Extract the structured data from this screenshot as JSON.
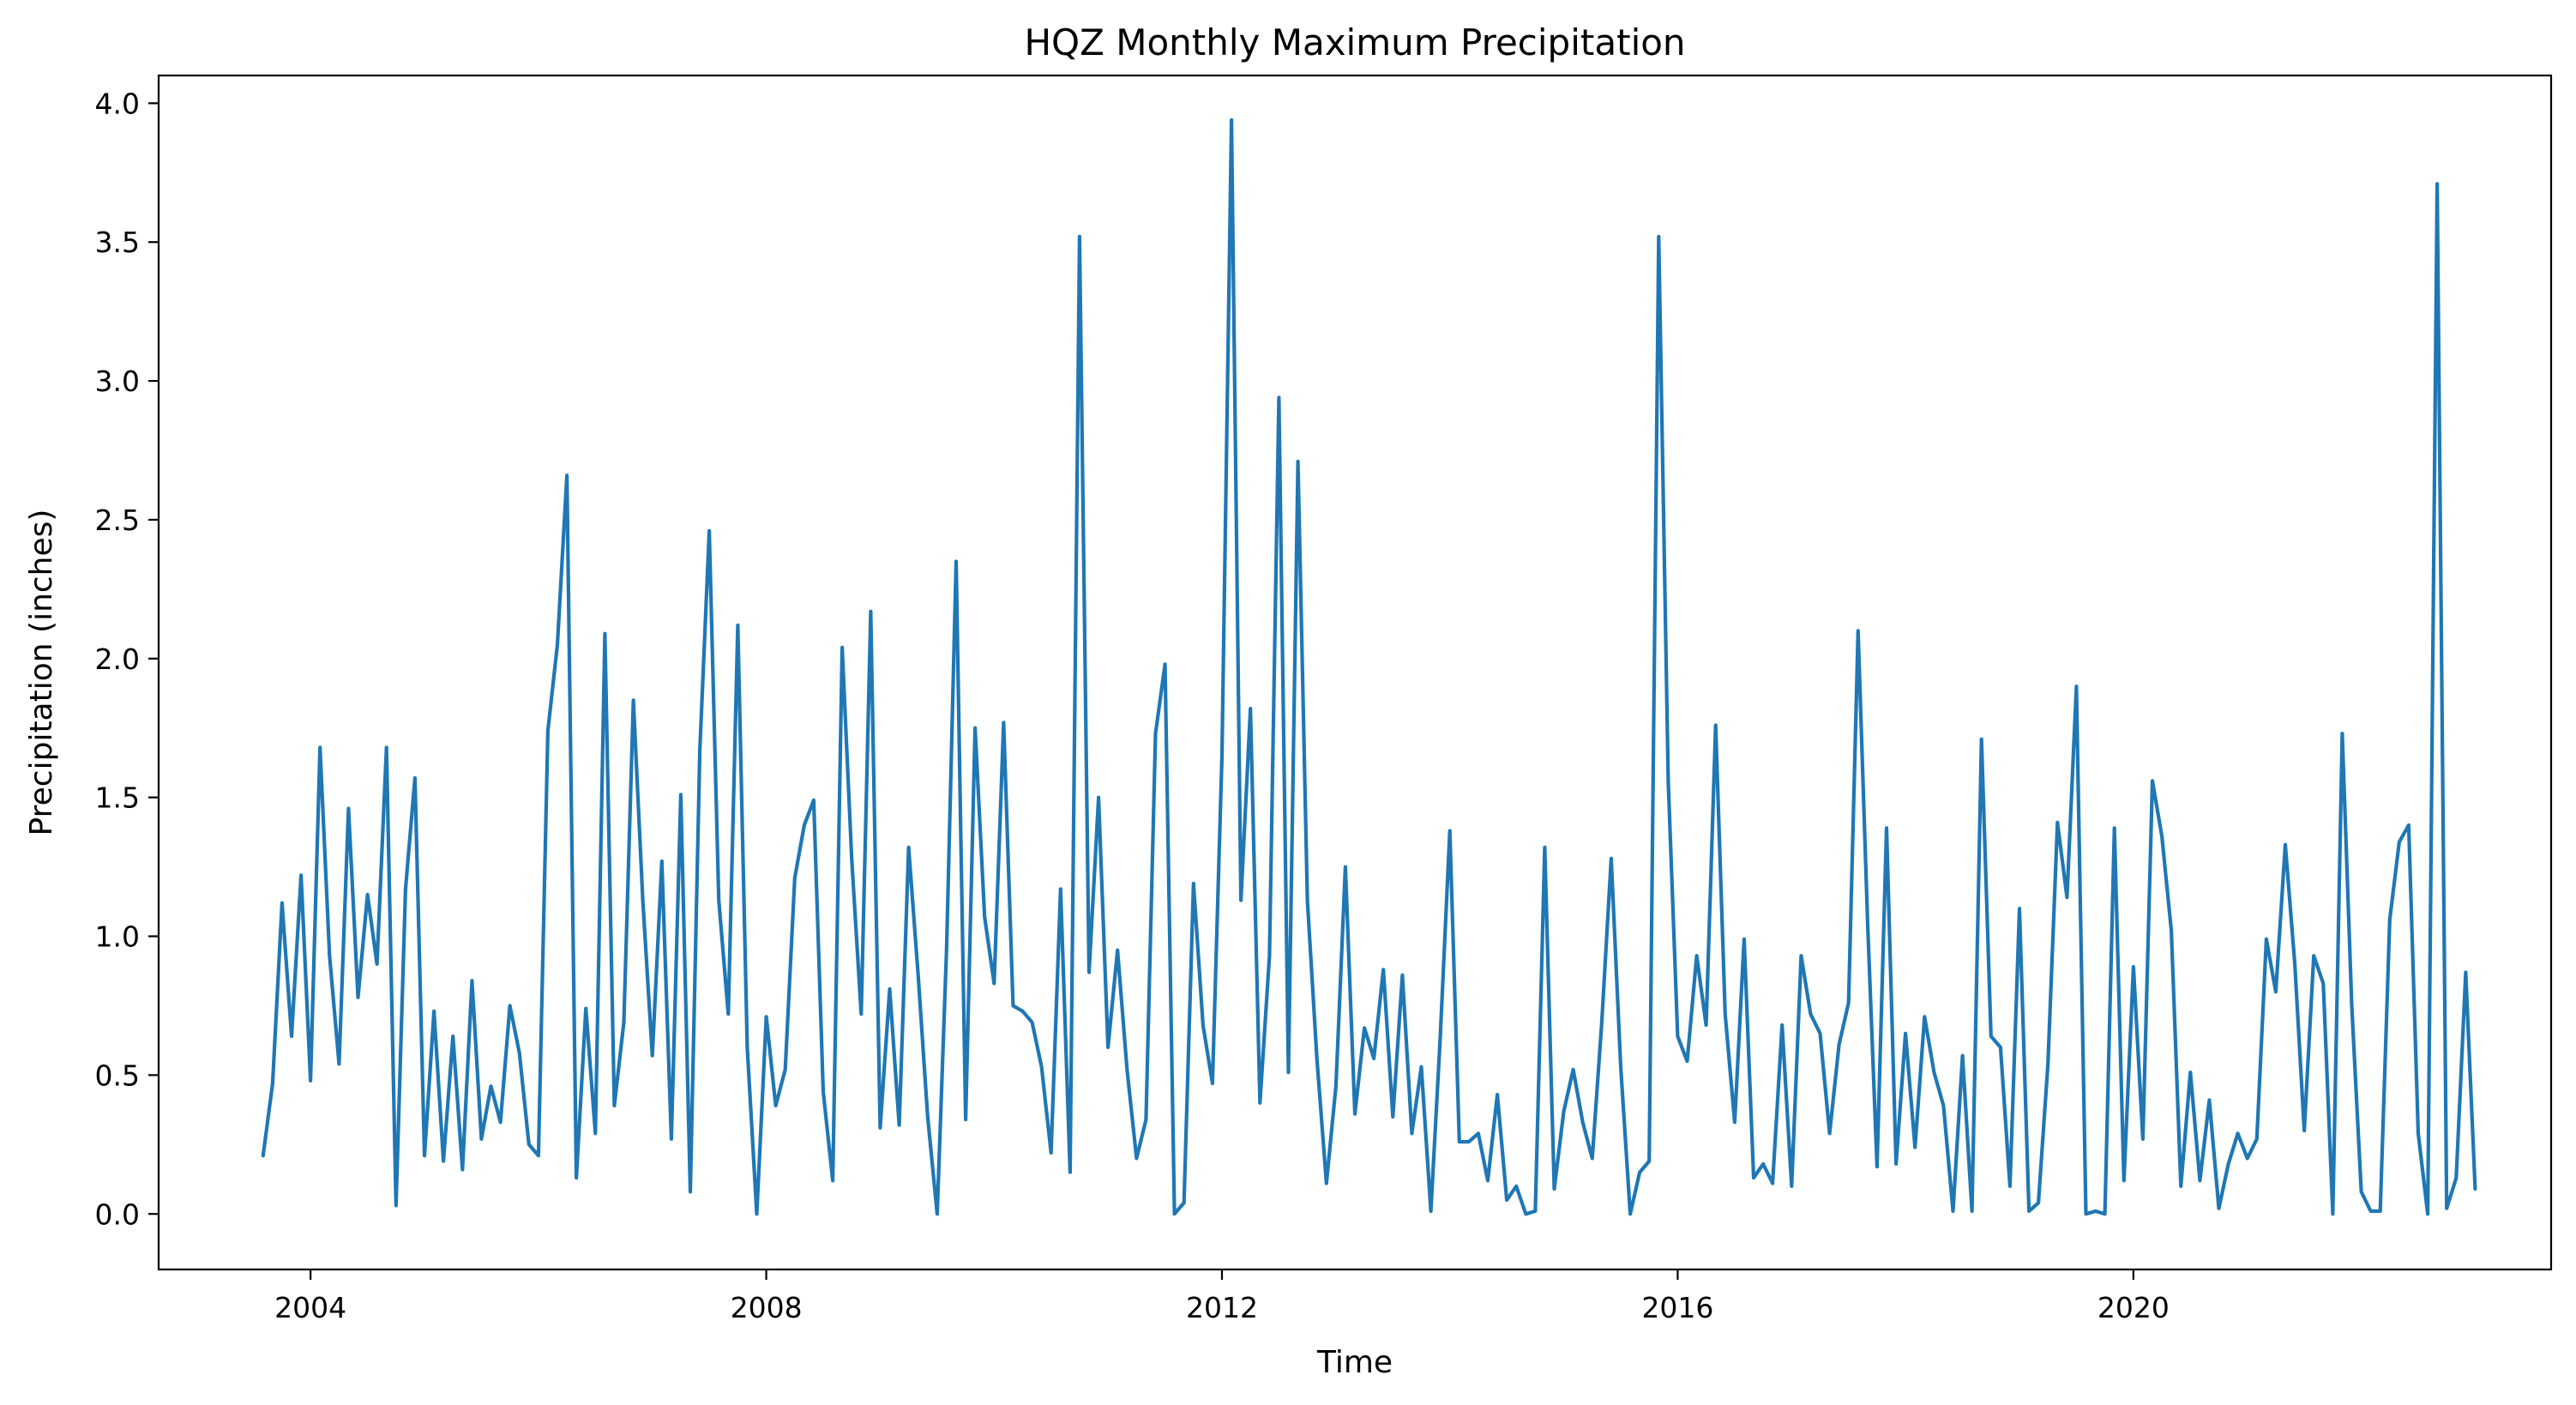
{
  "chart_data": {
    "type": "line",
    "title": "HQZ Monthly Maximum Precipitation",
    "xlabel": "Time",
    "ylabel": "Precipitation (inches)",
    "xlim": [
      "2002-09",
      "2023-09"
    ],
    "ylim": [
      -0.2,
      4.1
    ],
    "x_ticks": [
      "2004",
      "2008",
      "2012",
      "2016",
      "2020"
    ],
    "y_ticks": [
      "0.0",
      "0.5",
      "1.0",
      "1.5",
      "2.0",
      "2.5",
      "3.0",
      "3.5",
      "4.0"
    ],
    "grid": false,
    "line_color": "#1f77b4",
    "series": [
      {
        "x": [
          "2003-08",
          "2003-09",
          "2003-10",
          "2003-11",
          "2003-12",
          "2004-01",
          "2004-02",
          "2004-03",
          "2004-04",
          "2004-05",
          "2004-06",
          "2004-07",
          "2004-08",
          "2004-09",
          "2004-10",
          "2004-11",
          "2004-12",
          "2005-01",
          "2005-02",
          "2005-03",
          "2005-04",
          "2005-05",
          "2005-06",
          "2005-07",
          "2005-08",
          "2005-09",
          "2005-10",
          "2005-11",
          "2005-12",
          "2006-01",
          "2006-02",
          "2006-03",
          "2006-04",
          "2006-05",
          "2006-06",
          "2006-07",
          "2006-08",
          "2006-09",
          "2006-10",
          "2006-11",
          "2006-12",
          "2007-01",
          "2007-02",
          "2007-03",
          "2007-04",
          "2007-05",
          "2007-06",
          "2007-07",
          "2007-08",
          "2007-09",
          "2007-10",
          "2007-11",
          "2007-12",
          "2008-01",
          "2008-02",
          "2008-03",
          "2008-04",
          "2008-05",
          "2008-06",
          "2008-07",
          "2008-08",
          "2008-09",
          "2008-10",
          "2008-11",
          "2008-12",
          "2009-01",
          "2009-02",
          "2009-03",
          "2009-04",
          "2009-05",
          "2009-06",
          "2009-07",
          "2009-08",
          "2009-09",
          "2009-10",
          "2009-11",
          "2009-12",
          "2010-01",
          "2010-02",
          "2010-03",
          "2010-04",
          "2010-05",
          "2010-06",
          "2010-07",
          "2010-08",
          "2010-09",
          "2010-10",
          "2010-11",
          "2010-12",
          "2011-01",
          "2011-02",
          "2011-03",
          "2011-04",
          "2011-05",
          "2011-06",
          "2011-07",
          "2011-08",
          "2011-09",
          "2011-10",
          "2011-11",
          "2011-12",
          "2012-01",
          "2012-02",
          "2012-03",
          "2012-04",
          "2012-05",
          "2012-06",
          "2012-07",
          "2012-08",
          "2012-09",
          "2012-10",
          "2012-11",
          "2012-12",
          "2013-01",
          "2013-02",
          "2013-03",
          "2013-04",
          "2013-05",
          "2013-06",
          "2013-07",
          "2013-08",
          "2013-09",
          "2013-10",
          "2013-11",
          "2013-12",
          "2014-01",
          "2014-02",
          "2014-03",
          "2014-04",
          "2014-05",
          "2014-06",
          "2014-07",
          "2014-08",
          "2014-09",
          "2014-10",
          "2014-11",
          "2014-12",
          "2015-01",
          "2015-02",
          "2015-03",
          "2015-04",
          "2015-05",
          "2015-06",
          "2015-07",
          "2015-08",
          "2015-09",
          "2015-10",
          "2015-11",
          "2015-12",
          "2016-01",
          "2016-02",
          "2016-03",
          "2016-04",
          "2016-05",
          "2016-06",
          "2016-07",
          "2016-08",
          "2016-09",
          "2016-10",
          "2016-11",
          "2016-12",
          "2017-01",
          "2017-02",
          "2017-03",
          "2017-04",
          "2017-05",
          "2017-06",
          "2017-07",
          "2017-08",
          "2017-09",
          "2017-10",
          "2017-11",
          "2017-12",
          "2018-01",
          "2018-02",
          "2018-03",
          "2018-04",
          "2018-05",
          "2018-06",
          "2018-07",
          "2018-08",
          "2018-09",
          "2018-10",
          "2018-11",
          "2018-12",
          "2019-01",
          "2019-02",
          "2019-03",
          "2019-04",
          "2019-05",
          "2019-06",
          "2019-07",
          "2019-08",
          "2019-09",
          "2019-10",
          "2019-11",
          "2019-12",
          "2020-01",
          "2020-02",
          "2020-03",
          "2020-04",
          "2020-05",
          "2020-06",
          "2020-07",
          "2020-08",
          "2020-09",
          "2020-10",
          "2020-11",
          "2020-12",
          "2021-01",
          "2021-02",
          "2021-03",
          "2021-04",
          "2021-05",
          "2021-06",
          "2021-07",
          "2021-08",
          "2021-09",
          "2021-10",
          "2021-11",
          "2021-12",
          "2022-01",
          "2022-02",
          "2022-03",
          "2022-04",
          "2022-05",
          "2022-06",
          "2022-07",
          "2022-08",
          "2022-09",
          "2022-10",
          "2022-11",
          "2022-12",
          "2023-01"
        ],
        "y": [
          0.21,
          0.47,
          1.12,
          0.64,
          1.22,
          0.48,
          1.68,
          0.93,
          0.54,
          1.46,
          0.78,
          1.15,
          0.9,
          1.68,
          0.03,
          1.17,
          1.57,
          0.21,
          0.73,
          0.19,
          0.64,
          0.16,
          0.84,
          0.27,
          0.46,
          0.33,
          0.75,
          0.58,
          0.25,
          0.21,
          1.74,
          2.05,
          2.66,
          0.13,
          0.74,
          0.29,
          2.09,
          0.39,
          0.69,
          1.85,
          1.13,
          0.57,
          1.27,
          0.27,
          1.51,
          0.08,
          1.67,
          2.46,
          1.13,
          0.72,
          2.12,
          0.6,
          0.0,
          0.71,
          0.39,
          0.52,
          1.21,
          1.4,
          1.49,
          0.44,
          0.12,
          2.04,
          1.28,
          0.72,
          2.17,
          0.31,
          0.81,
          0.32,
          1.32,
          0.86,
          0.35,
          0.0,
          0.96,
          2.35,
          0.34,
          1.75,
          1.07,
          0.83,
          1.77,
          0.75,
          0.73,
          0.69,
          0.53,
          0.22,
          1.17,
          0.15,
          3.52,
          0.87,
          1.5,
          0.6,
          0.95,
          0.52,
          0.2,
          0.34,
          1.73,
          1.98,
          0.0,
          0.04,
          1.19,
          0.68,
          0.47,
          1.65,
          3.94,
          1.13,
          1.82,
          0.4,
          0.93,
          2.94,
          0.51,
          2.71,
          1.13,
          0.56,
          0.11,
          0.46,
          1.25,
          0.36,
          0.67,
          0.56,
          0.88,
          0.35,
          0.86,
          0.29,
          0.53,
          0.01,
          0.64,
          1.38,
          0.26,
          0.26,
          0.29,
          0.12,
          0.43,
          0.05,
          0.1,
          0.0,
          0.01,
          1.32,
          0.09,
          0.37,
          0.52,
          0.33,
          0.2,
          0.69,
          1.28,
          0.53,
          0.0,
          0.15,
          0.19,
          3.52,
          1.56,
          0.64,
          0.55,
          0.93,
          0.68,
          1.76,
          0.72,
          0.33,
          0.99,
          0.13,
          0.18,
          0.11,
          0.68,
          0.1,
          0.93,
          0.72,
          0.65,
          0.29,
          0.61,
          0.76,
          2.1,
          1.05,
          0.17,
          1.39,
          0.18,
          0.65,
          0.24,
          0.71,
          0.51,
          0.39,
          0.01,
          0.57,
          0.01,
          1.71,
          0.64,
          0.6,
          0.1,
          1.1,
          0.01,
          0.04,
          0.54,
          1.41,
          1.14,
          1.9,
          0.0,
          0.01,
          0.0,
          1.39,
          0.12,
          0.89,
          0.27,
          1.56,
          1.36,
          1.02,
          0.1,
          0.51,
          0.12,
          0.41,
          0.02,
          0.18,
          0.29,
          0.2,
          0.27,
          0.99,
          0.8,
          1.33,
          0.9,
          0.3,
          0.93,
          0.83,
          0.0,
          1.73,
          0.75,
          0.08,
          0.01,
          0.01,
          1.06,
          1.34,
          1.4,
          0.29,
          0.0,
          3.71,
          0.02,
          0.13,
          0.87,
          0.09
        ]
      }
    ]
  }
}
